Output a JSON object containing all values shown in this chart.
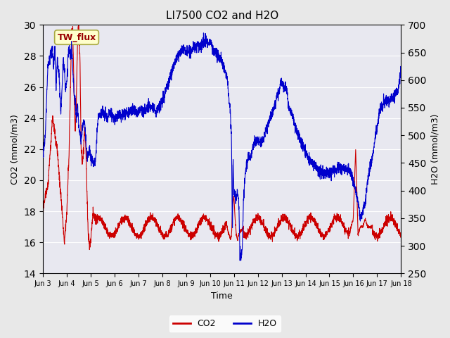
{
  "title": "LI7500 CO2 and H2O",
  "xlabel": "Time",
  "ylabel_left": "CO2 (mmol/m3)",
  "ylabel_right": "H2O (mmol/m3)",
  "ylim_left": [
    14,
    30
  ],
  "ylim_right": [
    250,
    700
  ],
  "yticks_left": [
    14,
    16,
    18,
    20,
    22,
    24,
    26,
    28,
    30
  ],
  "yticks_right": [
    250,
    300,
    350,
    400,
    450,
    500,
    550,
    600,
    650,
    700
  ],
  "xtick_labels": [
    "Jun 3",
    "Jun 4",
    "Jun 5",
    "Jun 6",
    "Jun 7",
    "Jun 8",
    "Jun 9",
    "Jun 10",
    "Jun 11",
    "Jun 12",
    "Jun 13",
    "Jun 14",
    "Jun 15",
    "Jun 16",
    "Jun 17",
    "Jun 18"
  ],
  "co2_color": "#cc0000",
  "h2o_color": "#0000cc",
  "bg_color": "#e8e8e8",
  "plot_bg_color": "#e8e8f0",
  "grid_color": "#ffffff",
  "legend_items": [
    "CO2",
    "H2O"
  ],
  "annotation_text": "TW_flux",
  "annotation_bg": "#ffffcc",
  "annotation_border": "#aaaa44"
}
